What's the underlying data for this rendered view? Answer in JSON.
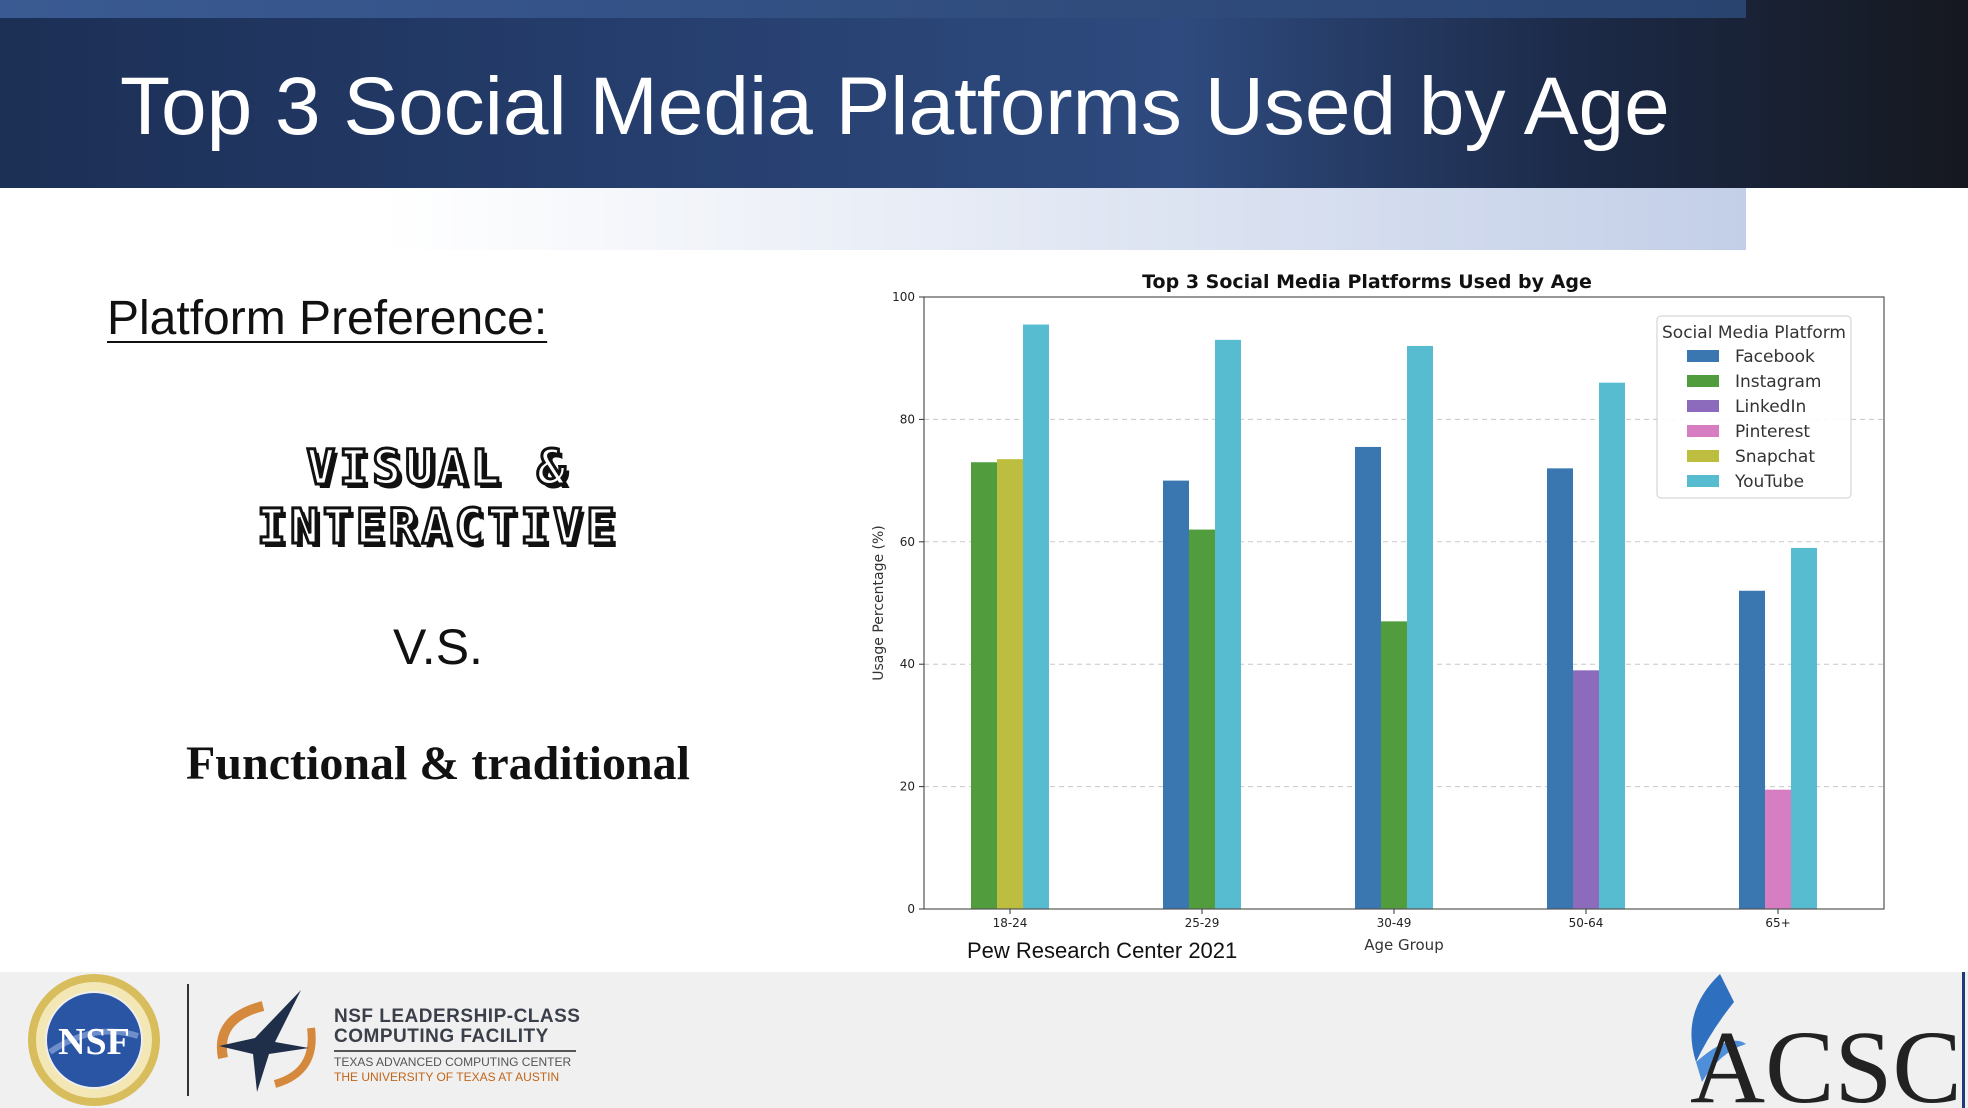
{
  "slide": {
    "title": "Top 3 Social Media Platforms Used by Age",
    "left_panel": {
      "heading": "Platform Preference:",
      "visual_line1": "VISUAL &",
      "visual_line2": "INTERACTIVE",
      "vs": "V.S.",
      "functional": "Functional & traditional"
    },
    "source_note": "Pew Research Center 2021",
    "footer": {
      "nsf_seal_text": "NSF",
      "lcf_line1": "NSF LEADERSHIP-CLASS",
      "lcf_line2": "COMPUTING FACILITY",
      "lcf_line3": "TEXAS ADVANCED COMPUTING CENTER",
      "lcf_line4": "THE UNIVERSITY OF TEXAS AT AUSTIN",
      "acsc_text": "ACSC"
    }
  },
  "chart_data": {
    "type": "bar",
    "title": "Top 3 Social Media Platforms Used by Age",
    "xlabel": "Age Group",
    "ylabel": "Usage Percentage (%)",
    "ylim": [
      0,
      100
    ],
    "yticks": [
      0,
      20,
      40,
      60,
      80,
      100
    ],
    "grid": "horizontal dashed",
    "legend_title": "Social Media Platform",
    "legend_position": "top-right",
    "categories": [
      "18-24",
      "25-29",
      "30-49",
      "50-64",
      "65+"
    ],
    "series": [
      {
        "name": "Facebook",
        "color": "#3a76b0",
        "values": [
          null,
          70,
          75.5,
          72,
          52
        ]
      },
      {
        "name": "Instagram",
        "color": "#519d3d",
        "values": [
          73,
          62,
          47,
          null,
          null
        ]
      },
      {
        "name": "LinkedIn",
        "color": "#8c6bbd",
        "values": [
          null,
          null,
          null,
          39,
          null
        ]
      },
      {
        "name": "Pinterest",
        "color": "#d77ec3",
        "values": [
          null,
          null,
          null,
          null,
          19.5
        ]
      },
      {
        "name": "Snapchat",
        "color": "#bdbd3f",
        "values": [
          73.5,
          null,
          null,
          null,
          null
        ]
      },
      {
        "name": "YouTube",
        "color": "#57bccf",
        "values": [
          95.5,
          93,
          92,
          86,
          59
        ]
      }
    ]
  }
}
